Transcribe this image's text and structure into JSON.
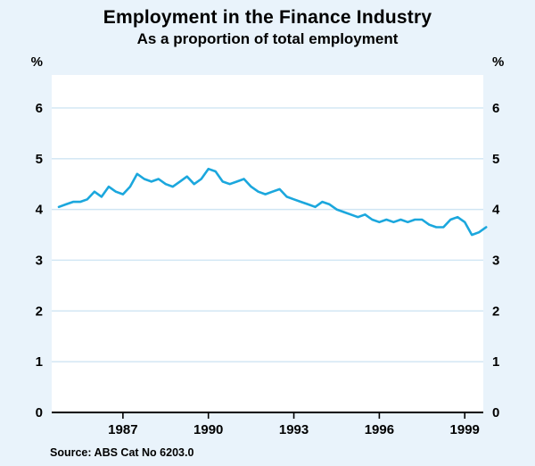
{
  "chart_data": {
    "type": "line",
    "title": "Employment in the Finance Industry",
    "subtitle": "As a proportion of total employment",
    "left_unit_label": "%",
    "right_unit_label": "%",
    "source": "Source: ABS Cat No 6203.0",
    "x_start": 1984.75,
    "x_step": 0.25,
    "values": [
      4.05,
      4.1,
      4.15,
      4.15,
      4.2,
      4.35,
      4.25,
      4.45,
      4.35,
      4.3,
      4.45,
      4.7,
      4.6,
      4.55,
      4.6,
      4.5,
      4.45,
      4.55,
      4.65,
      4.5,
      4.6,
      4.8,
      4.75,
      4.55,
      4.5,
      4.55,
      4.6,
      4.45,
      4.35,
      4.3,
      4.35,
      4.4,
      4.25,
      4.2,
      4.15,
      4.1,
      4.05,
      4.15,
      4.1,
      4.0,
      3.95,
      3.9,
      3.85,
      3.9,
      3.8,
      3.75,
      3.8,
      3.75,
      3.8,
      3.75,
      3.8,
      3.8,
      3.7,
      3.65,
      3.65,
      3.8,
      3.85,
      3.75,
      3.5,
      3.55,
      3.65
    ],
    "xlim": [
      1984.5,
      1999.65
    ],
    "ylim": [
      0,
      6.65
    ],
    "y_ticks": [
      0,
      1,
      2,
      3,
      4,
      5,
      6
    ],
    "x_ticks": [
      1987,
      1990,
      1993,
      1996,
      1999
    ],
    "legend": "none",
    "grid": "horizontal",
    "line_color": "#1ba7dd",
    "background_color": "#e9f3fb",
    "plot_background_color": "#ffffff",
    "grid_color": "#cfe5f3",
    "axis_color": "#000000"
  }
}
